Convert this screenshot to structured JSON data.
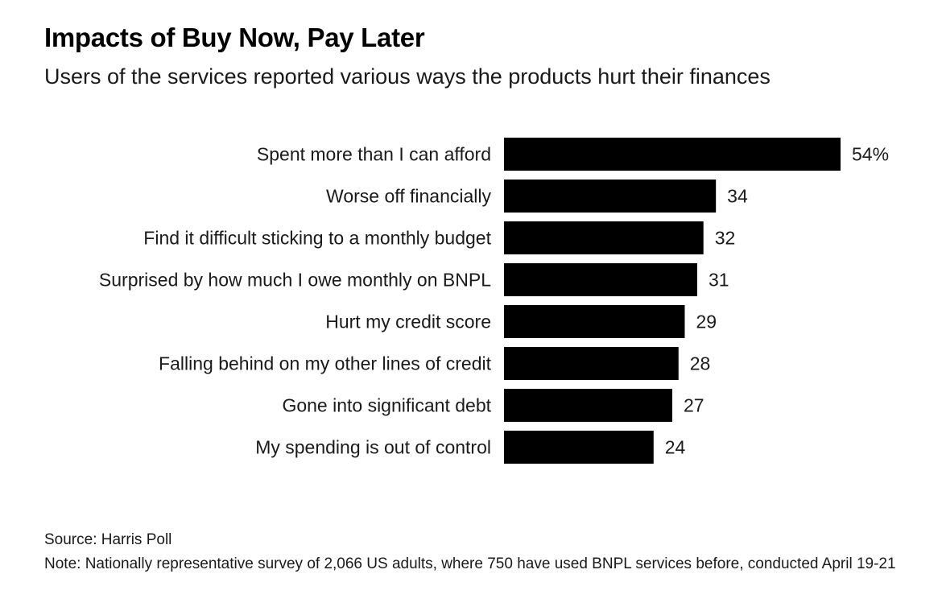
{
  "chart_data": {
    "type": "bar",
    "orientation": "horizontal",
    "title": "Impacts of Buy Now, Pay Later",
    "subtitle": "Users of the services reported various ways the products hurt their finances",
    "categories": [
      "Spent more than I can afford",
      "Worse off financially",
      "Find it difficult sticking to a monthly budget",
      "Surprised by how much I owe monthly on BNPL",
      "Hurt my credit score",
      "Falling behind on my other lines of credit",
      "Gone into significant debt",
      "My spending is out of control"
    ],
    "values": [
      54,
      34,
      32,
      31,
      29,
      28,
      27,
      24
    ],
    "value_labels": [
      "54%",
      "34",
      "32",
      "31",
      "29",
      "28",
      "27",
      "24"
    ],
    "xlim": [
      0,
      54
    ],
    "unit": "%",
    "grid": false,
    "bar_color": "#000000"
  },
  "footer": {
    "source": "Source: Harris Poll",
    "note": "Note: Nationally representative survey of 2,066 US adults, where 750 have used BNPL services before, conducted April 19-21"
  }
}
